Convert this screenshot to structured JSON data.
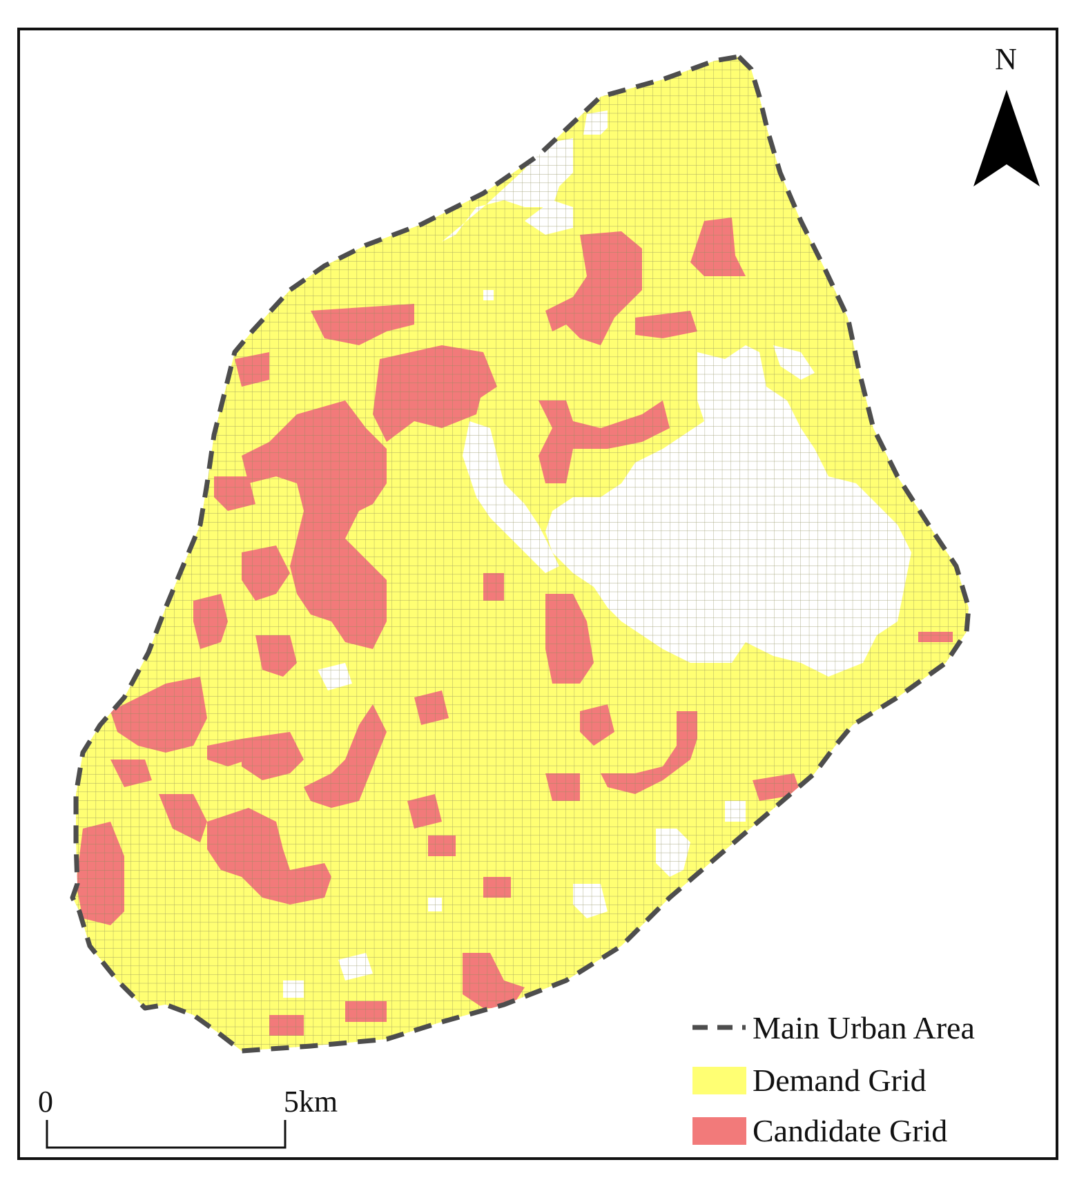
{
  "map": {
    "north_label": "N",
    "scale": {
      "start_label": "0",
      "end_label": "5km"
    },
    "legend": {
      "boundary_label": "Main Urban Area",
      "demand_label": "Demand Grid",
      "candidate_label": "Candidate Grid"
    },
    "colors": {
      "demand": "#ffff73",
      "candidate": "#f27a7a",
      "grid_line": "#8c8c5a",
      "boundary": "#4d4d4d"
    }
  }
}
